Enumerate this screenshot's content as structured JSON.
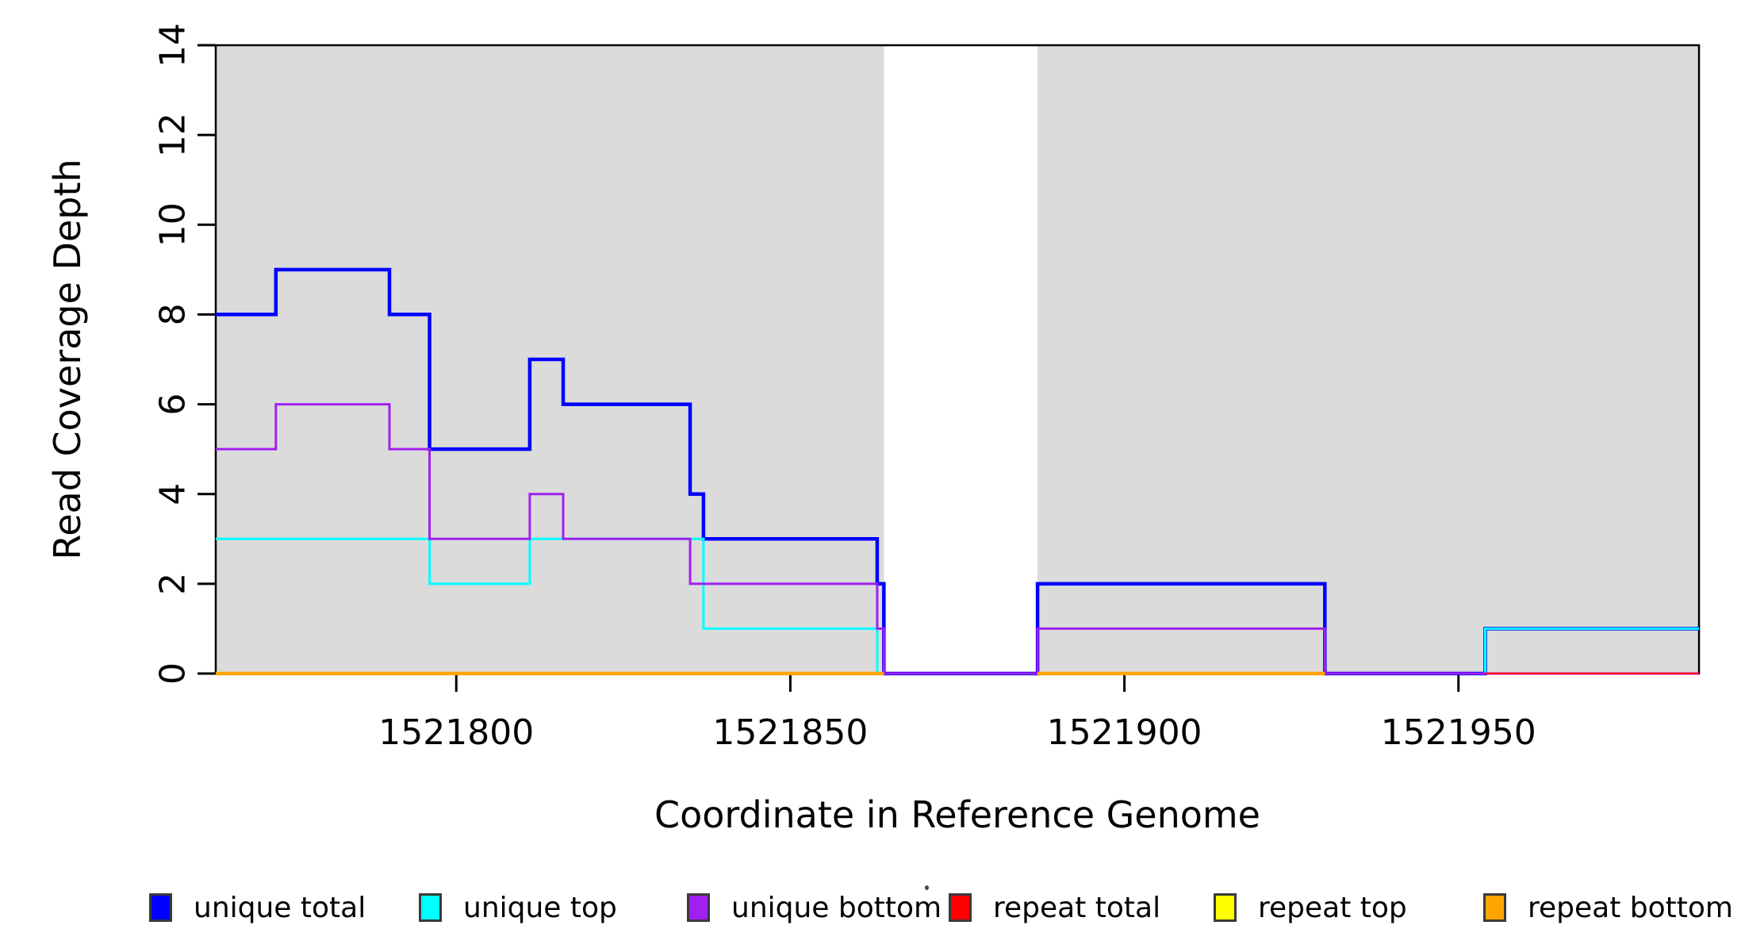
{
  "chart_data": {
    "type": "line",
    "subtype": "step-coverage",
    "xlabel": "Coordinate in Reference Genome",
    "ylabel": "Read Coverage Depth",
    "xlim": [
      1521764,
      1521986
    ],
    "ylim": [
      0,
      14
    ],
    "grid": false,
    "axis_color": "#000000",
    "plot_bg_color": "#ffffff",
    "shaded_region_color": "#dbdbdb",
    "background_regions": [
      {
        "x0": 1521764,
        "x1": 1521864
      },
      {
        "x0": 1521887,
        "x1": 1521986
      }
    ],
    "xticks": [
      {
        "value": 1521800,
        "label": "1521800"
      },
      {
        "value": 1521850,
        "label": "1521850"
      },
      {
        "value": 1521900,
        "label": "1521900"
      },
      {
        "value": 1521950,
        "label": "1521950"
      }
    ],
    "yticks": [
      {
        "value": 0,
        "label": "0"
      },
      {
        "value": 2,
        "label": "2"
      },
      {
        "value": 4,
        "label": "4"
      },
      {
        "value": 6,
        "label": "6"
      },
      {
        "value": 8,
        "label": "8"
      },
      {
        "value": 10,
        "label": "10"
      },
      {
        "value": 12,
        "label": "12"
      },
      {
        "value": 14,
        "label": "14"
      }
    ],
    "series": [
      {
        "name": "unique total",
        "color": "#0000ff",
        "line_width": 4.5,
        "parts": [
          {
            "points": [
              [
                1521764,
                8
              ],
              [
                1521773,
                9
              ],
              [
                1521790,
                8
              ],
              [
                1521796,
                5
              ],
              [
                1521811,
                7
              ],
              [
                1521816,
                6
              ],
              [
                1521835,
                4
              ],
              [
                1521837,
                3
              ],
              [
                1521863,
                2
              ],
              [
                1521864,
                0
              ],
              [
                1521887,
                2
              ],
              [
                1521930,
                0
              ],
              [
                1521954,
                1
              ]
            ],
            "end": 1521986
          }
        ]
      },
      {
        "name": "unique top",
        "color": "#00ffff",
        "line_width": 3,
        "parts": [
          {
            "points": [
              [
                1521764,
                3
              ],
              [
                1521796,
                2
              ],
              [
                1521811,
                3
              ],
              [
                1521837,
                1
              ],
              [
                1521863,
                0
              ],
              [
                1521954,
                1
              ]
            ],
            "end": 1521986
          }
        ]
      },
      {
        "name": "unique bottom",
        "color": "#a020f0",
        "line_width": 3,
        "parts": [
          {
            "points": [
              [
                1521764,
                5
              ],
              [
                1521773,
                6
              ],
              [
                1521790,
                5
              ],
              [
                1521796,
                3
              ],
              [
                1521811,
                4
              ],
              [
                1521816,
                3
              ],
              [
                1521835,
                2
              ],
              [
                1521863,
                1
              ],
              [
                1521864,
                0
              ],
              [
                1521887,
                1
              ],
              [
                1521930,
                0
              ]
            ],
            "end": 1521986
          }
        ]
      },
      {
        "name": "repeat total",
        "color": "#ff0000",
        "line_width": 2.2,
        "parts": [
          {
            "points": [
              [
                1521764,
                0
              ]
            ],
            "end": 1521864
          },
          {
            "points": [
              [
                1521887,
                0
              ]
            ],
            "end": 1521930
          },
          {
            "points": [
              [
                1521954,
                0
              ]
            ],
            "end": 1521986
          }
        ]
      },
      {
        "name": "repeat top",
        "color": "#ffff00",
        "line_width": 2.2,
        "parts": [
          {
            "points": [
              [
                1521764,
                0
              ]
            ],
            "end": 1521864
          },
          {
            "points": [
              [
                1521887,
                0
              ]
            ],
            "end": 1521930
          }
        ]
      },
      {
        "name": "repeat bottom",
        "color": "#ffa500",
        "line_width": 4.5,
        "parts": [
          {
            "points": [
              [
                1521764,
                0
              ]
            ],
            "end": 1521864
          },
          {
            "points": [
              [
                1521887,
                0
              ]
            ],
            "end": 1521930
          }
        ]
      }
    ],
    "legend": {
      "position": "bottom",
      "items": [
        {
          "label": "unique total",
          "color": "#0000ff"
        },
        {
          "label": "unique top",
          "color": "#00ffff"
        },
        {
          "label": "unique bottom",
          "color": "#a020f0"
        },
        {
          "label": "repeat total",
          "color": "#ff0000"
        },
        {
          "label": "repeat top",
          "color": "#ffff00"
        },
        {
          "label": "repeat bottom",
          "color": "#ffa500"
        }
      ]
    }
  }
}
